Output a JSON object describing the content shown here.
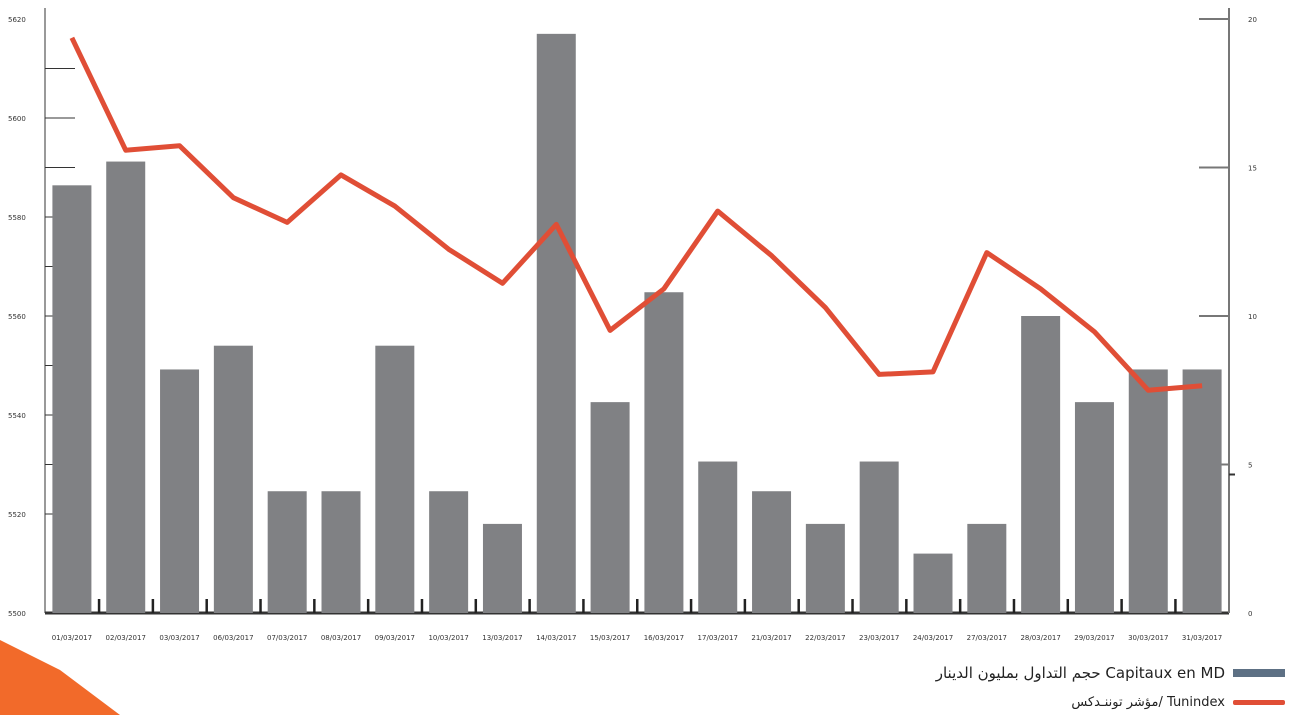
{
  "chart_data": {
    "type": "bar+line",
    "categories": [
      "01/03/2017",
      "02/03/2017",
      "03/03/2017",
      "06/03/2017",
      "07/03/2017",
      "08/03/2017",
      "09/03/2017",
      "10/03/2017",
      "13/03/2017",
      "14/03/2017",
      "15/03/2017",
      "16/03/2017",
      "17/03/2017",
      "21/03/2017",
      "22/03/2017",
      "23/03/2017",
      "24/03/2017",
      "27/03/2017",
      "28/03/2017",
      "29/03/2017",
      "30/03/2017",
      "31/03/2017"
    ],
    "series": [
      {
        "name": "حجم التداول بمليون الدينار  Capitaux en MD",
        "kind": "bar",
        "axis": "right",
        "values": [
          14.4,
          15.2,
          8.2,
          9.0,
          4.1,
          4.1,
          9.0,
          4.1,
          3.0,
          19.5,
          7.1,
          10.8,
          5.1,
          4.1,
          3.0,
          5.1,
          2.0,
          3.0,
          10.0,
          7.1,
          8.2,
          8.2
        ]
      },
      {
        "name": "مؤشر توننـدكس/ Tunindex",
        "kind": "line",
        "axis": "left",
        "values": [
          5616.2,
          5593.5,
          5594.4,
          5583.9,
          5578.9,
          5588.5,
          5582.2,
          5573.5,
          5566.6,
          5578.5,
          5557.1,
          5565.5,
          5581.2,
          5572.2,
          5561.7,
          5548.2,
          5548.7,
          5572.8,
          5565.5,
          5556.8,
          5545.0,
          5545.9
        ]
      }
    ],
    "yleft": {
      "ticks": [
        "5500",
        "5520",
        "5540",
        "5560",
        "5580",
        "5600",
        "5620"
      ],
      "lim": [
        5500,
        5620
      ]
    },
    "yright": {
      "ticks": [
        "0",
        "5",
        "10",
        "15",
        "20"
      ],
      "lim": [
        0,
        20
      ]
    },
    "colors": {
      "bar": "#808184",
      "line": "#e04e36",
      "legend_bar": "#5d7084",
      "corner": "#f26a2a"
    }
  },
  "legend": {
    "bars_label": "حجم التداول بمليون الدينار  Capitaux en MD",
    "line_label": "مؤشر توننـدكس/ Tunindex"
  }
}
